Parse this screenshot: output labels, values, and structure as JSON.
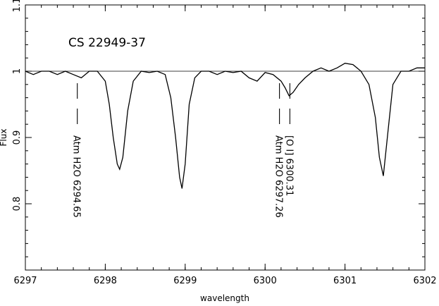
{
  "chart_data": {
    "type": "line",
    "title": "CS 22949-37",
    "xlabel": "wavelength",
    "ylabel": "Flux",
    "xlim": [
      6297,
      6302
    ],
    "ylim": [
      0.7,
      1.1
    ],
    "xticks": [
      6297,
      6298,
      6299,
      6300,
      6301,
      6302
    ],
    "xtick_labels": [
      "6297",
      "6298",
      "6299",
      "6300",
      "6301",
      "6302"
    ],
    "yticks": [
      0.8,
      0.9,
      1,
      1.1
    ],
    "ytick_labels": [
      "0.8",
      "0.9",
      "1",
      "1.1"
    ],
    "continuum": 1.0,
    "grid": false,
    "series": [
      {
        "x": [
          6297.0,
          6297.1,
          6297.2,
          6297.3,
          6297.4,
          6297.5,
          6297.6,
          6297.7,
          6297.8,
          6297.9,
          6298.0,
          6298.05,
          6298.1,
          6298.15,
          6298.18,
          6298.22,
          6298.28,
          6298.35,
          6298.45,
          6298.55,
          6298.65,
          6298.75,
          6298.82,
          6298.88,
          6298.93,
          6298.96,
          6299.0,
          6299.05,
          6299.12,
          6299.2,
          6299.3,
          6299.4,
          6299.5,
          6299.6,
          6299.7,
          6299.8,
          6299.9,
          6300.0,
          6300.1,
          6300.2,
          6300.25,
          6300.3,
          6300.35,
          6300.42,
          6300.5,
          6300.6,
          6300.7,
          6300.8,
          6300.9,
          6301.0,
          6301.1,
          6301.2,
          6301.3,
          6301.38,
          6301.43,
          6301.48,
          6301.53,
          6301.6,
          6301.7,
          6301.8,
          6301.9,
          6302.0
        ],
        "y": [
          1.0,
          0.995,
          1.0,
          1.0,
          0.995,
          1.0,
          0.995,
          0.99,
          1.0,
          1.0,
          0.985,
          0.95,
          0.9,
          0.86,
          0.852,
          0.87,
          0.94,
          0.985,
          1.0,
          0.998,
          1.0,
          0.995,
          0.96,
          0.9,
          0.84,
          0.823,
          0.86,
          0.95,
          0.99,
          1.0,
          1.0,
          0.995,
          1.0,
          0.998,
          1.0,
          0.99,
          0.985,
          0.998,
          0.995,
          0.985,
          0.975,
          0.963,
          0.968,
          0.98,
          0.99,
          1.0,
          1.005,
          1.0,
          1.005,
          1.012,
          1.01,
          1.0,
          0.98,
          0.93,
          0.87,
          0.842,
          0.9,
          0.98,
          1.0,
          1.0,
          1.005,
          1.005
        ]
      }
    ],
    "annotations": [
      {
        "x": 6297.65,
        "label": "Atm  H2O  6294.65"
      },
      {
        "x": 6300.18,
        "label": "Atm H2O  6297.26"
      },
      {
        "x": 6300.31,
        "label": "[O I]  6300.31"
      }
    ]
  }
}
